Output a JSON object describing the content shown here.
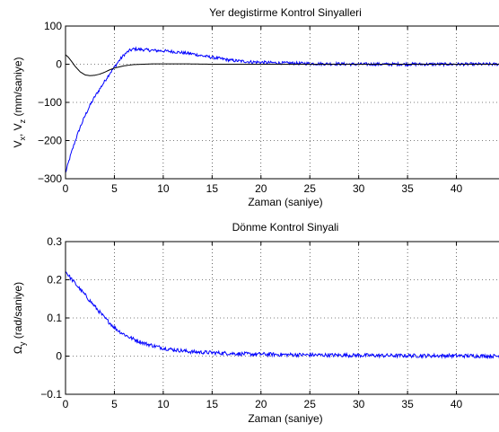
{
  "chart_data": [
    {
      "type": "line",
      "title": "Yer degistirme Kontrol Sinyalleri",
      "xlabel": "Zaman (saniye)",
      "ylabel": {
        "prefix": "V",
        "sub1": "x",
        "sep": ", V",
        "sub2": "z",
        "suffix": " (mm/saniye)"
      },
      "xlim": [
        0,
        45
      ],
      "ylim": [
        -300,
        100
      ],
      "xticks": [
        0,
        5,
        10,
        15,
        20,
        25,
        30,
        35,
        40,
        45
      ],
      "yticks": [
        -300,
        -200,
        -100,
        0,
        100
      ],
      "ytick_labels": [
        "−300",
        "−200",
        "−100",
        "0",
        "100"
      ],
      "grid": true,
      "series": [
        {
          "color": "#0000ff",
          "x": [
            0,
            0.5,
            1,
            1.5,
            2,
            2.5,
            3,
            3.5,
            4,
            4.5,
            5,
            5.5,
            6,
            6.5,
            7,
            8,
            9,
            10,
            11,
            12,
            13,
            14,
            15,
            16,
            17,
            18,
            19,
            20,
            21,
            22,
            23,
            24,
            25,
            26,
            27,
            28,
            29,
            30,
            31,
            32,
            33,
            34,
            35,
            36,
            37,
            38,
            39,
            40,
            41,
            42,
            43,
            44,
            44.5
          ],
          "y": [
            -285,
            -240,
            -200,
            -165,
            -135,
            -108,
            -85,
            -65,
            -45,
            -25,
            -8,
            10,
            25,
            35,
            40,
            38,
            36,
            35,
            33,
            30,
            27,
            22,
            18,
            14,
            10,
            8,
            6,
            5,
            4,
            3,
            3,
            2,
            2,
            1,
            1,
            1,
            0,
            0,
            0,
            0,
            0,
            0,
            0,
            0,
            0,
            0,
            0,
            0,
            0,
            0,
            0,
            0,
            0
          ],
          "noise": 4
        },
        {
          "color": "#000000",
          "x": [
            0,
            0.3,
            0.6,
            1,
            1.5,
            2,
            2.5,
            3,
            3.5,
            4,
            4.5,
            5,
            6,
            7,
            8,
            9,
            10,
            12,
            15,
            20,
            30,
            44.5
          ],
          "y": [
            25,
            18,
            8,
            -6,
            -20,
            -28,
            -30,
            -29,
            -26,
            -21,
            -15,
            -10,
            -4,
            -1,
            0,
            1,
            1,
            1,
            0,
            0,
            0,
            0
          ],
          "noise": 0
        }
      ]
    },
    {
      "type": "line",
      "title": "Dönme Kontrol Sinyali",
      "xlabel": "Zaman (saniye)",
      "ylabel": {
        "prefix": "Ω",
        "sub1": "y",
        "sep": "",
        "sub2": "",
        "suffix": " (rad/saniye)"
      },
      "xlim": [
        0,
        45
      ],
      "ylim": [
        -0.1,
        0.3
      ],
      "xticks": [
        0,
        5,
        10,
        15,
        20,
        25,
        30,
        35,
        40,
        45
      ],
      "yticks": [
        -0.1,
        0,
        0.1,
        0.2,
        0.3
      ],
      "ytick_labels": [
        "−0.1",
        "0",
        "0.1",
        "0.2",
        "0.3"
      ],
      "grid": true,
      "series": [
        {
          "color": "#0000ff",
          "x": [
            0,
            0.5,
            1,
            1.5,
            2,
            2.5,
            3,
            3.5,
            4,
            4.5,
            5,
            5.5,
            6,
            6.5,
            7,
            7.5,
            8,
            9,
            10,
            11,
            12,
            13,
            14,
            15,
            16,
            17,
            18,
            19,
            20,
            22,
            25,
            30,
            35,
            40,
            44.5
          ],
          "y": [
            0.222,
            0.205,
            0.19,
            0.175,
            0.16,
            0.145,
            0.13,
            0.115,
            0.1,
            0.088,
            0.075,
            0.065,
            0.057,
            0.05,
            0.044,
            0.039,
            0.034,
            0.027,
            0.021,
            0.017,
            0.014,
            0.011,
            0.01,
            0.009,
            0.008,
            0.007,
            0.006,
            0.005,
            0.005,
            0.004,
            0.003,
            0.002,
            0.001,
            0.001,
            0
          ],
          "noise": 0.005
        }
      ]
    }
  ]
}
